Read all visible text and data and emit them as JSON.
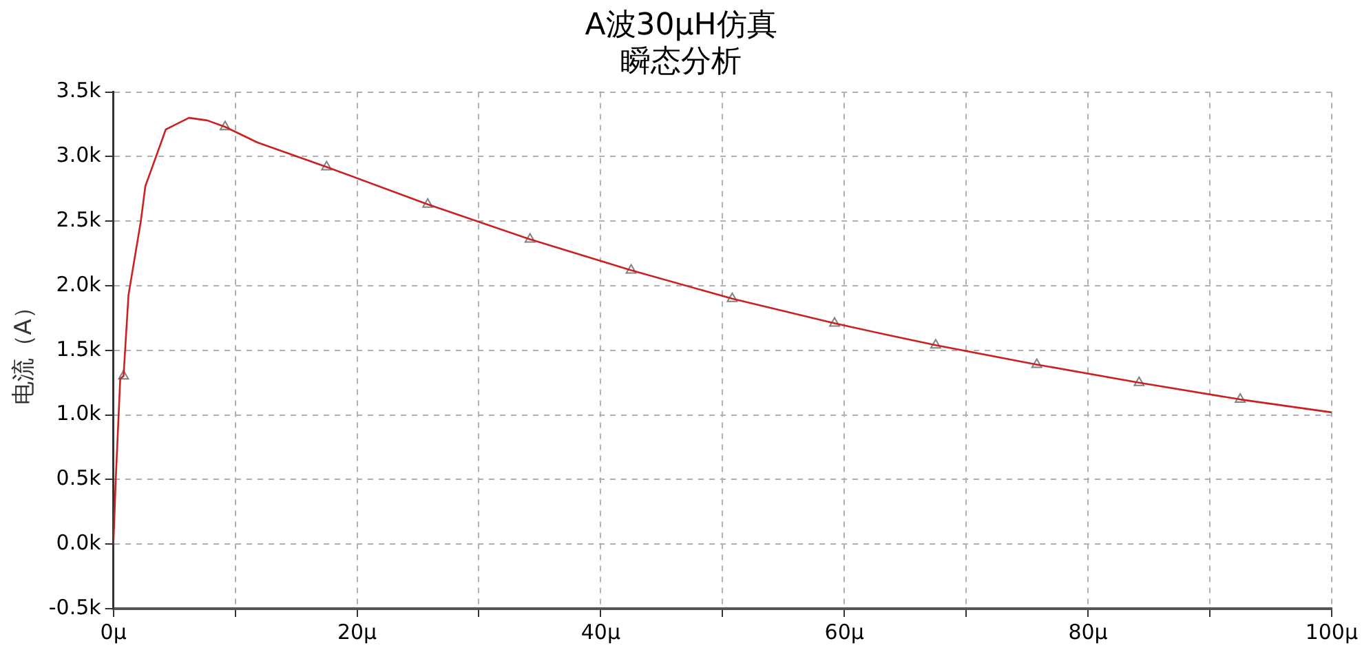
{
  "chart_data": {
    "type": "line",
    "title": "A波30μH仿真",
    "subtitle": "瞬态分析",
    "ylabel": "电流（A）",
    "xlim": [
      0,
      100
    ],
    "xticks": [
      {
        "value": 0,
        "label": "0μ"
      },
      {
        "value": 10,
        "label": null
      },
      {
        "value": 20,
        "label": "20μ"
      },
      {
        "value": 30,
        "label": null
      },
      {
        "value": 40,
        "label": "40μ"
      },
      {
        "value": 50,
        "label": null
      },
      {
        "value": 60,
        "label": "60μ"
      },
      {
        "value": 70,
        "label": null
      },
      {
        "value": 80,
        "label": "80μ"
      },
      {
        "value": 90,
        "label": null
      },
      {
        "value": 100,
        "label": "100μ"
      }
    ],
    "ylim": [
      -500,
      3500
    ],
    "yticks": [
      {
        "value": -500,
        "label": "-0.5k"
      },
      {
        "value": 0,
        "label": "0.0k"
      },
      {
        "value": 500,
        "label": "0.5k"
      },
      {
        "value": 1000,
        "label": "1.0k"
      },
      {
        "value": 1500,
        "label": "1.5k"
      },
      {
        "value": 2000,
        "label": "2.0k"
      },
      {
        "value": 2500,
        "label": "2.5k"
      },
      {
        "value": 3000,
        "label": "3.0k"
      },
      {
        "value": 3500,
        "label": "3.5k"
      }
    ],
    "grid": true,
    "line_style": "solid",
    "series": [
      {
        "marker": "none",
        "color": "#cc2020",
        "x": [
          0,
          0.2,
          0.56,
          0.83,
          1.24,
          2.25,
          2.62,
          4.3,
          6.2,
          7.7,
          9.17,
          11.8,
          17.5,
          25.8,
          34.2,
          42.5,
          50.8,
          59.2,
          63.5,
          67.5,
          75.8,
          84.2,
          92.5,
          100
        ],
        "values": [
          0,
          520,
          1280,
          1300,
          1930,
          2500,
          2770,
          3210,
          3300,
          3280,
          3230,
          3110,
          2920,
          2630,
          2360,
          2120,
          1900,
          1710,
          1620,
          1540,
          1390,
          1250,
          1120,
          1020
        ]
      },
      {
        "type": "scatter",
        "marker": "triangle",
        "color": "#808080",
        "x": [
          0.83,
          9.17,
          17.5,
          25.8,
          34.2,
          42.5,
          50.8,
          59.2,
          67.5,
          75.8,
          84.2,
          92.5
        ],
        "values": [
          1300,
          3230,
          2920,
          2630,
          2360,
          2120,
          1900,
          1710,
          1540,
          1390,
          1250,
          1120
        ]
      }
    ]
  }
}
